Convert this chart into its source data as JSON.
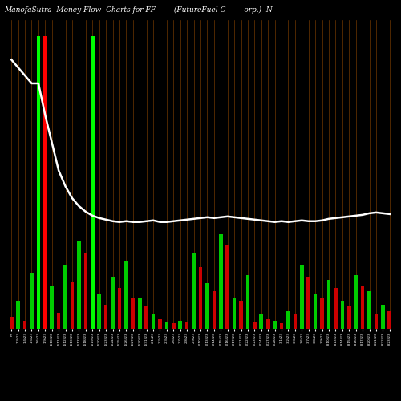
{
  "title": "ManofaSutra  Money Flow  Charts for FF        (FutureFuel C        orp.)  N",
  "background_color": "#000000",
  "bar_colors_positive": "#00CC00",
  "bar_colors_negative": "#CC0000",
  "bar_highlight_green": "#00FF00",
  "bar_highlight_red": "#FF0000",
  "line_color": "#FFFFFF",
  "title_color": "#FFFFFF",
  "title_fontsize": 6.5,
  "vertical_line_color": "#8B4500",
  "labels": [
    "FF",
    "1/3/23",
    "1/4/23",
    "1/5/23",
    "1/6/23",
    "1/9/23",
    "1/10/23",
    "1/11/23",
    "1/12/23",
    "1/13/23",
    "1/17/23",
    "1/18/23",
    "1/19/23",
    "1/20/23",
    "1/23/23",
    "1/24/23",
    "1/25/23",
    "1/26/23",
    "1/27/23",
    "1/30/23",
    "1/31/23",
    "2/1/23",
    "2/2/23",
    "2/3/23",
    "2/6/23",
    "2/7/23",
    "2/8/23",
    "2/9/23",
    "2/10/23",
    "2/13/23",
    "2/14/23",
    "2/15/23",
    "2/16/23",
    "2/17/23",
    "2/21/23",
    "2/22/23",
    "2/23/23",
    "2/24/23",
    "2/27/23",
    "2/28/23",
    "3/1/23",
    "3/2/23",
    "3/3/23",
    "3/6/23",
    "3/7/23",
    "3/8/23",
    "3/9/23",
    "3/10/23",
    "3/13/23",
    "3/14/23",
    "3/15/23",
    "3/16/23",
    "3/17/23",
    "3/20/23",
    "3/21/23",
    "3/22/23",
    "3/23/23"
  ],
  "bar_heights": [
    15,
    35,
    10,
    70,
    370,
    370,
    55,
    20,
    80,
    60,
    110,
    95,
    370,
    45,
    30,
    65,
    52,
    85,
    38,
    40,
    28,
    18,
    12,
    8,
    7,
    10,
    9,
    95,
    78,
    58,
    48,
    120,
    105,
    40,
    35,
    68,
    9,
    18,
    12,
    10,
    7,
    22,
    18,
    80,
    65,
    44,
    38,
    62,
    52,
    35,
    28,
    68,
    55,
    48,
    18,
    30,
    22
  ],
  "bar_is_green": [
    false,
    true,
    false,
    true,
    true,
    false,
    true,
    false,
    true,
    false,
    true,
    false,
    true,
    true,
    false,
    true,
    false,
    true,
    false,
    true,
    false,
    true,
    false,
    true,
    false,
    true,
    false,
    true,
    false,
    true,
    false,
    true,
    false,
    true,
    false,
    true,
    false,
    true,
    false,
    true,
    false,
    true,
    false,
    true,
    false,
    true,
    false,
    true,
    false,
    true,
    false,
    true,
    false,
    true,
    false,
    true,
    false
  ],
  "bar_highlight_indices": [
    4,
    5,
    12
  ],
  "bar_highlight_colors": [
    "#00FF00",
    "#FF0000",
    "#00FF00"
  ],
  "line_values": [
    340,
    330,
    320,
    310,
    310,
    270,
    235,
    200,
    180,
    165,
    155,
    148,
    143,
    140,
    138,
    136,
    135,
    136,
    135,
    135,
    136,
    137,
    135,
    135,
    136,
    137,
    138,
    139,
    140,
    141,
    140,
    141,
    142,
    141,
    140,
    139,
    138,
    137,
    136,
    135,
    136,
    135,
    136,
    137,
    136,
    136,
    137,
    139,
    140,
    141,
    142,
    143,
    144,
    146,
    147,
    146,
    145
  ],
  "ylim_max": 390,
  "figsize": [
    5.0,
    5.0
  ],
  "dpi": 100
}
